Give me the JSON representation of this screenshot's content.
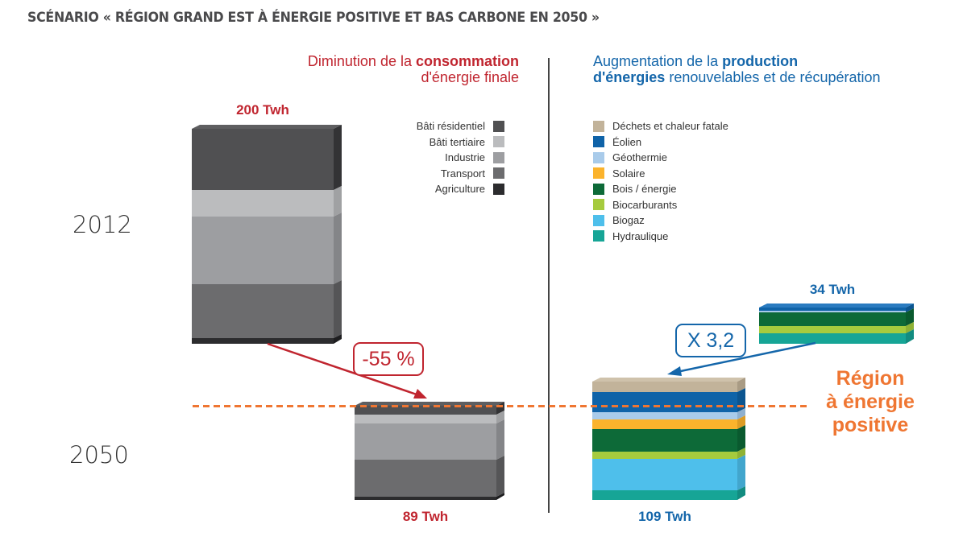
{
  "header": {
    "title": "SCÉNARIO « RÉGION GRAND EST À ÉNERGIE POSITIVE ET BAS CARBONE EN 2050 »"
  },
  "consumption": {
    "heading_pre": "Diminution de la ",
    "heading_bold": "consommation",
    "heading_line2": "d'énergie finale",
    "total_2012": "200 Twh",
    "total_2050": "89 Twh",
    "change_badge": "-55 %",
    "legend": [
      {
        "label": "Bâti résidentiel",
        "color": "#505052"
      },
      {
        "label": "Bâti tertiaire",
        "color": "#bbbcbe"
      },
      {
        "label": "Industrie",
        "color": "#9d9ea1"
      },
      {
        "label": "Transport",
        "color": "#6c6c6e"
      },
      {
        "label": "Agriculture",
        "color": "#2c2c2e"
      }
    ]
  },
  "production": {
    "heading_pre": "Augmentation de la ",
    "heading_bold1": "production",
    "heading_bold2": "d'énergies",
    "heading_rest": " renouvelables et de récupération",
    "total_2012": "34 Twh",
    "total_2050": "109 Twh",
    "change_badge": "X 3,2",
    "legend": [
      {
        "label": "Déchets et chaleur fatale",
        "color": "#c2b39a"
      },
      {
        "label": "Éolien",
        "color": "#0f63a8"
      },
      {
        "label": "Géothermie",
        "color": "#a9cbea"
      },
      {
        "label": "Solaire",
        "color": "#fbb32c"
      },
      {
        "label": "Bois / énergie",
        "color": "#0d6a38"
      },
      {
        "label": "Biocarburants",
        "color": "#a6cb3e"
      },
      {
        "label": "Biogaz",
        "color": "#4ebfeb"
      },
      {
        "label": "Hydraulique",
        "color": "#16a596"
      }
    ]
  },
  "years": {
    "y2012": "2012",
    "y2050": "2050"
  },
  "positive_label": {
    "line1": "Région",
    "line2": "à énergie",
    "line3": "positive"
  },
  "chart_data": {
    "type": "bar",
    "title": "SCÉNARIO « RÉGION GRAND EST À ÉNERGIE POSITIVE ET BAS CARBONE EN 2050 »",
    "stacked": true,
    "unit": "TWh",
    "charts": [
      {
        "name": "Consommation d'énergie finale",
        "categories": [
          "2012",
          "2050"
        ],
        "totals": [
          200,
          89
        ],
        "annotation": "-55 %",
        "series": [
          {
            "name": "Bâti résidentiel",
            "values": [
              58,
              8
            ]
          },
          {
            "name": "Bâti tertiaire",
            "values": [
              24,
              8
            ]
          },
          {
            "name": "Industrie",
            "values": [
              62,
              34
            ]
          },
          {
            "name": "Transport",
            "values": [
              50,
              35
            ]
          },
          {
            "name": "Agriculture",
            "values": [
              6,
              4
            ]
          }
        ]
      },
      {
        "name": "Production d'énergies renouvelables et de récupération",
        "categories": [
          "2012",
          "2050"
        ],
        "totals": [
          34,
          109
        ],
        "annotation": "X 3,2",
        "series": [
          {
            "name": "Déchets et chaleur fatale",
            "values": [
              0,
              10
            ]
          },
          {
            "name": "Éolien",
            "values": [
              3,
              18
            ]
          },
          {
            "name": "Géothermie",
            "values": [
              1,
              7
            ]
          },
          {
            "name": "Solaire",
            "values": [
              0,
              9
            ]
          },
          {
            "name": "Bois / énergie",
            "values": [
              15,
              21
            ]
          },
          {
            "name": "Biocarburants",
            "values": [
              6,
              6
            ]
          },
          {
            "name": "Biogaz",
            "values": [
              0,
              30
            ]
          },
          {
            "name": "Hydraulique",
            "values": [
              9,
              8
            ]
          }
        ]
      }
    ],
    "annotations": [
      "Région à énergie positive (dashed line: 2050 production exceeds consumption)"
    ]
  }
}
